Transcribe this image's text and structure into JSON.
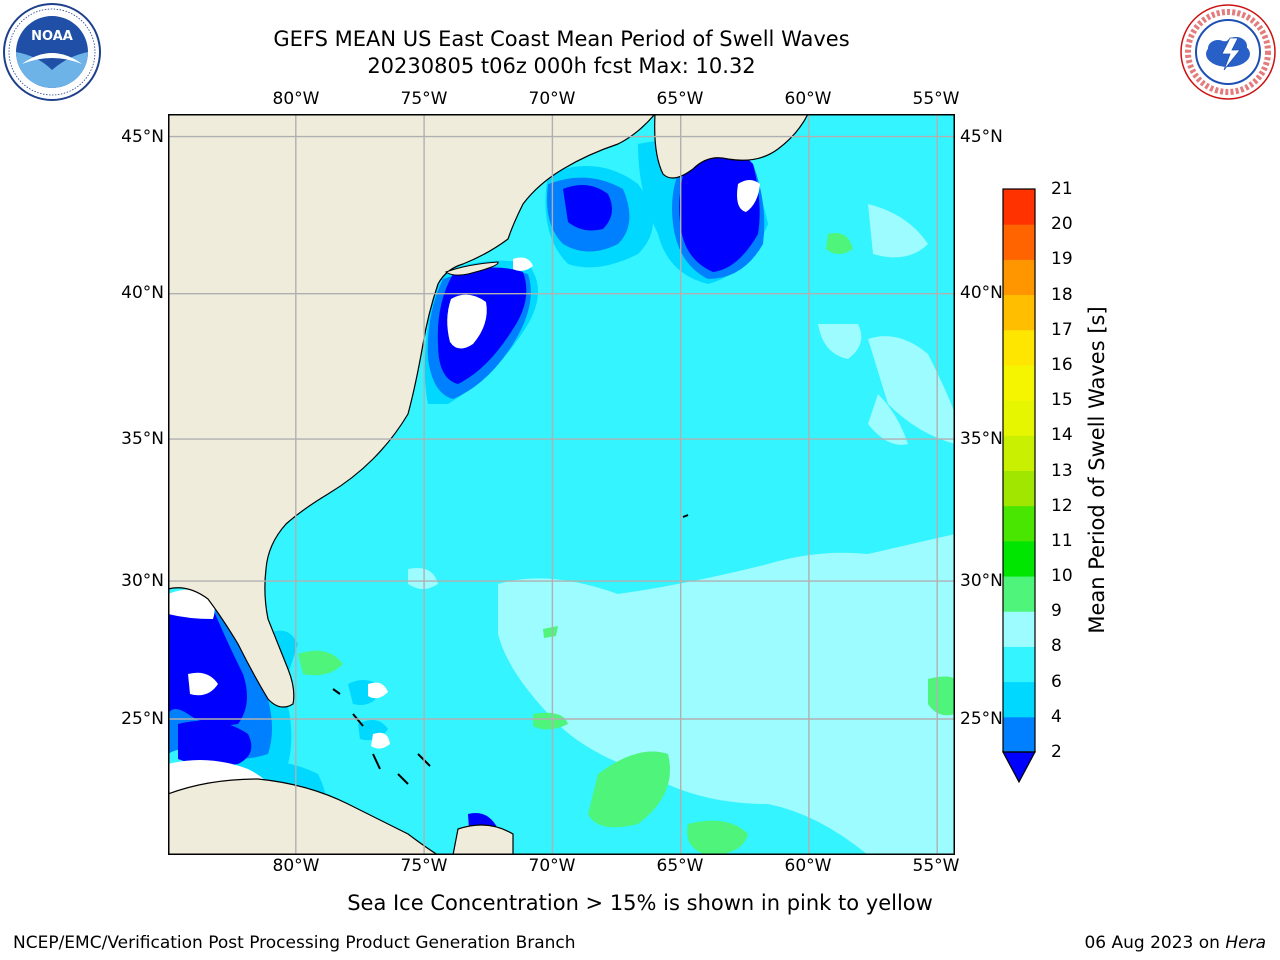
{
  "header": {
    "title_line1": "GEFS MEAN US East Coast Mean Period of Swell Waves",
    "title_line2": "20230805 t06z 000h fcst   Max: 10.32"
  },
  "logos": {
    "left": {
      "name": "noaa-logo",
      "text": "NOAA"
    },
    "right": {
      "name": "national-weather-service-logo",
      "text": "NATIONAL WEATHER SERVICE"
    }
  },
  "map": {
    "lon_ticks": [
      "80°W",
      "75°W",
      "70°W",
      "65°W",
      "60°W",
      "55°W"
    ],
    "lat_ticks": [
      "45°N",
      "40°N",
      "35°N",
      "30°N",
      "25°N"
    ],
    "extent": {
      "lon_min": -85,
      "lon_max": -54.3,
      "lat_min": 20.3,
      "lat_max": 45.8
    },
    "colors": {
      "land": "#efecdc",
      "ocean_default": "#33f4ff",
      "grid": "#b0b0b0",
      "coast": "#000000"
    }
  },
  "colorbar": {
    "title": "Mean Period of Swell Waves [s]",
    "levels": [
      "2",
      "4",
      "6",
      "8",
      "9",
      "10",
      "11",
      "12",
      "13",
      "14",
      "15",
      "16",
      "17",
      "18",
      "19",
      "20",
      "21"
    ],
    "colors": [
      "#0080ff",
      "#00d8ff",
      "#33f4ff",
      "#9cfcff",
      "#4ff57a",
      "#00e600",
      "#48e600",
      "#a0e600",
      "#c8f000",
      "#e6f500",
      "#f5f500",
      "#ffe600",
      "#ffbe00",
      "#ff9600",
      "#ff6400",
      "#ff3200"
    ],
    "under_color": "#0000ff"
  },
  "note": "Sea Ice Concentration > 15% is shown in pink to yellow",
  "footer": {
    "left": "NCEP/EMC/Verification Post Processing Product Generation Branch",
    "right_prefix": "06 Aug 2023 on ",
    "right_italic": "Hera"
  }
}
